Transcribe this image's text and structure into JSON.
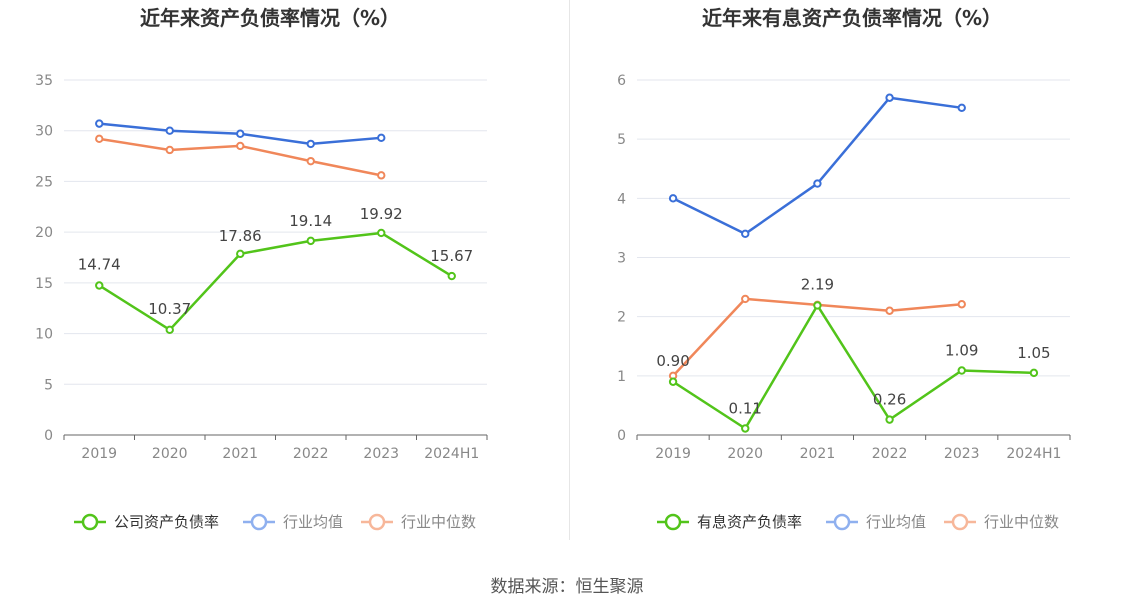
{
  "source_label": "数据来源：恒生聚源",
  "chart_data": [
    {
      "type": "line",
      "title": "近年来资产负债率情况（%）",
      "x": [
        "2019",
        "2020",
        "2021",
        "2022",
        "2023",
        "2024H1"
      ],
      "ylim": [
        0,
        35
      ],
      "yticks": [
        0,
        5,
        10,
        15,
        20,
        25,
        30,
        35
      ],
      "grid": true,
      "legend_position": "bottom",
      "series": [
        {
          "name": "公司资产负债率",
          "color": "#52c41a",
          "values": [
            14.74,
            10.37,
            17.86,
            19.14,
            19.92,
            15.67
          ],
          "labels": [
            "14.74",
            "10.37",
            "17.86",
            "19.14",
            "19.92",
            "15.67"
          ]
        },
        {
          "name": "行业均值",
          "color": "#3a6fd8",
          "values": [
            30.7,
            30.0,
            29.7,
            28.7,
            29.3,
            null
          ]
        },
        {
          "name": "行业中位数",
          "color": "#f0875a",
          "values": [
            29.2,
            28.1,
            28.5,
            27.0,
            25.6,
            null
          ]
        }
      ]
    },
    {
      "type": "line",
      "title": "近年来有息资产负债率情况（%）",
      "x": [
        "2019",
        "2020",
        "2021",
        "2022",
        "2023",
        "2024H1"
      ],
      "ylim": [
        0,
        6
      ],
      "yticks": [
        0,
        1,
        2,
        3,
        4,
        5,
        6
      ],
      "grid": true,
      "legend_position": "bottom",
      "series": [
        {
          "name": "有息资产负债率",
          "color": "#52c41a",
          "values": [
            0.9,
            0.11,
            2.19,
            0.26,
            1.09,
            1.05
          ],
          "labels": [
            "0.90",
            "0.11",
            "2.19",
            "0.26",
            "1.09",
            "1.05"
          ]
        },
        {
          "name": "行业均值",
          "color": "#3a6fd8",
          "values": [
            4.0,
            3.4,
            4.25,
            5.7,
            5.53,
            null
          ]
        },
        {
          "name": "行业中位数",
          "color": "#f0875a",
          "values": [
            1.0,
            2.3,
            2.2,
            2.1,
            2.21,
            null
          ]
        }
      ]
    }
  ]
}
